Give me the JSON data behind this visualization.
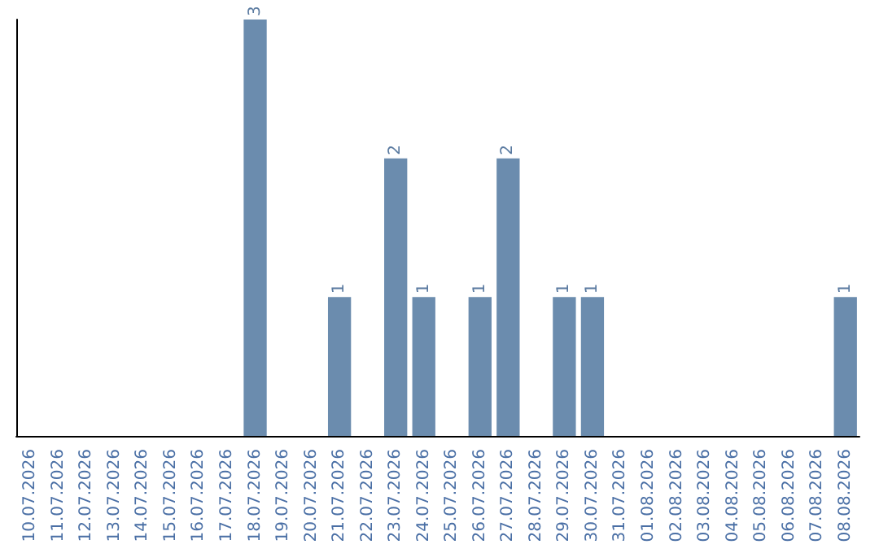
{
  "chart_data": {
    "type": "bar",
    "categories": [
      "10.07.2026",
      "11.07.2026",
      "12.07.2026",
      "13.07.2026",
      "14.07.2026",
      "15.07.2026",
      "16.07.2026",
      "17.07.2026",
      "18.07.2026",
      "19.07.2026",
      "20.07.2026",
      "21.07.2026",
      "22.07.2026",
      "23.07.2026",
      "24.07.2026",
      "25.07.2026",
      "26.07.2026",
      "27.07.2026",
      "28.07.2026",
      "29.07.2026",
      "30.07.2026",
      "31.07.2026",
      "01.08.2026",
      "02.08.2026",
      "03.08.2026",
      "04.08.2026",
      "05.08.2026",
      "06.08.2026",
      "07.08.2026",
      "08.08.2026"
    ],
    "values": [
      0,
      0,
      0,
      0,
      0,
      0,
      0,
      0,
      3,
      0,
      0,
      1,
      0,
      2,
      1,
      0,
      1,
      2,
      0,
      1,
      1,
      0,
      0,
      0,
      0,
      0,
      0,
      0,
      0,
      1
    ],
    "value_labels": [
      null,
      null,
      null,
      null,
      null,
      null,
      null,
      null,
      "3",
      null,
      null,
      "1",
      null,
      "2",
      "1",
      null,
      "1",
      "2",
      null,
      "1",
      "1",
      null,
      null,
      null,
      null,
      null,
      null,
      null,
      null,
      "1"
    ],
    "color": "#6b8cae",
    "tick_labels": "x",
    "grid": false
  }
}
